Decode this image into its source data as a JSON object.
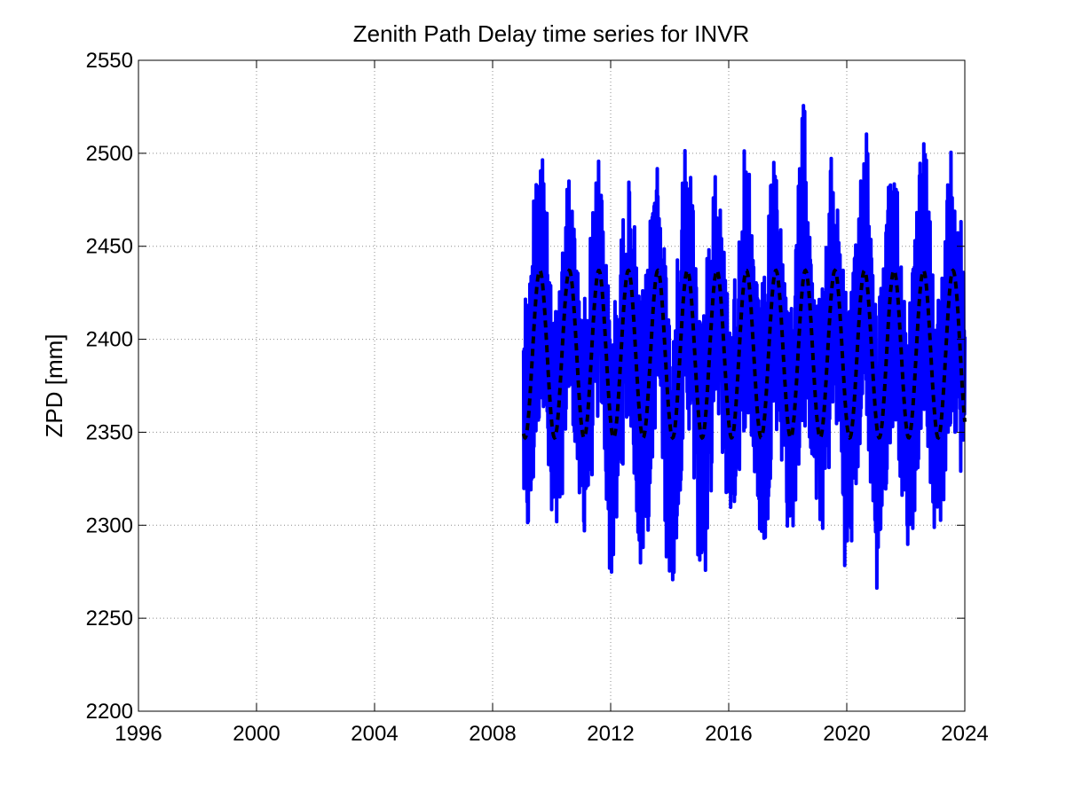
{
  "chart_data": {
    "type": "line",
    "title": "Zenith Path Delay time series for INVR",
    "xlabel": "",
    "ylabel": "ZPD [mm]",
    "xlim": [
      1996,
      2024
    ],
    "ylim": [
      2200,
      2550
    ],
    "xticks": [
      "1996",
      "2000",
      "2004",
      "2008",
      "2012",
      "2016",
      "2020",
      "2024"
    ],
    "yticks": [
      "2200",
      "2250",
      "2300",
      "2350",
      "2400",
      "2450",
      "2500",
      "2550"
    ],
    "grid": true,
    "grid_style": "dotted",
    "colors": {
      "observed": "#0000ff",
      "model": "#000000",
      "grid": "#8c8c8c"
    },
    "series": [
      {
        "style": "solid",
        "color": "#0000ff",
        "x": [
          2009.05,
          2009.25,
          2009.5,
          2009.7,
          2010.0,
          2010.25,
          2010.5,
          2010.7,
          2011.0,
          2011.25,
          2011.5,
          2011.7,
          2012.0,
          2012.25,
          2012.5,
          2012.7,
          2013.0,
          2013.25,
          2013.5,
          2013.7,
          2014.0,
          2014.25,
          2014.5,
          2014.7,
          2015.0,
          2015.25,
          2015.5,
          2015.7,
          2016.0,
          2016.25,
          2016.5,
          2016.7,
          2017.0,
          2017.25,
          2017.5,
          2017.7,
          2018.0,
          2018.25,
          2018.5,
          2018.7,
          2019.0,
          2019.25,
          2019.5,
          2019.7,
          2020.0,
          2020.25,
          2020.5,
          2020.7,
          2021.0,
          2021.25,
          2021.5,
          2021.7,
          2022.0,
          2022.25,
          2022.5,
          2022.7,
          2023.0,
          2023.25,
          2023.5,
          2023.7,
          2024.0
        ],
        "upper": [
          2432,
          2432,
          2528,
          2512,
          2420,
          2420,
          2506,
          2475,
          2420,
          2440,
          2506,
          2487,
          2410,
          2432,
          2487,
          2486,
          2420,
          2440,
          2515,
          2480,
          2420,
          2440,
          2507,
          2502,
          2420,
          2440,
          2507,
          2480,
          2420,
          2440,
          2503,
          2490,
          2420,
          2440,
          2503,
          2480,
          2420,
          2440,
          2538,
          2500,
          2420,
          2440,
          2505,
          2480,
          2420,
          2440,
          2508,
          2527,
          2420,
          2440,
          2505,
          2487,
          2420,
          2440,
          2501,
          2510,
          2420,
          2440,
          2510,
          2500,
          2451
        ],
        "lower": [
          2303,
          2283,
          2340,
          2370,
          2284,
          2289,
          2350,
          2360,
          2289,
          2303,
          2350,
          2360,
          2263,
          2300,
          2350,
          2350,
          2272,
          2290,
          2350,
          2350,
          2242,
          2295,
          2350,
          2350,
          2271,
          2266,
          2350,
          2350,
          2301,
          2310,
          2350,
          2350,
          2298,
          2280,
          2350,
          2350,
          2295,
          2300,
          2350,
          2350,
          2299,
          2295,
          2350,
          2350,
          2257,
          2300,
          2350,
          2350,
          2257,
          2300,
          2350,
          2350,
          2285,
          2295,
          2350,
          2350,
          2286,
          2300,
          2350,
          2350,
          2309
        ]
      },
      {
        "style": "dashed",
        "color": "#000000",
        "period_years": 1.0,
        "peak_year_fraction": 0.6,
        "mean": 2392,
        "amplitude": 45,
        "x_start": 2009.05,
        "x_end": 2024.0
      }
    ]
  }
}
